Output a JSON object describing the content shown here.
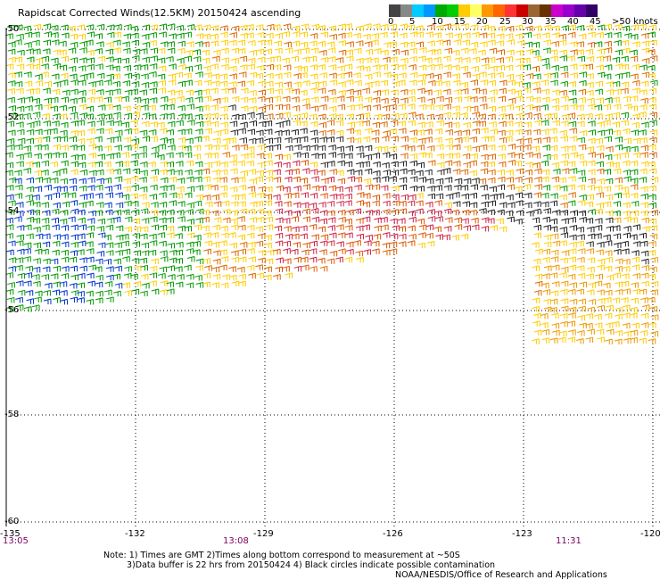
{
  "title": "Rapidscat Corrected Winds(12.5KM) 20150424 ascending",
  "legend": {
    "ticks": [
      "0",
      "5",
      "10",
      "15",
      "20",
      "25",
      "30",
      "35",
      "40",
      "45",
      ">50 knots"
    ],
    "colors": [
      "#444444",
      "#888888",
      "#00ccff",
      "#0099ff",
      "#00aa00",
      "#00cc00",
      "#ffcc00",
      "#ffff66",
      "#ff9900",
      "#ff6600",
      "#ff3333",
      "#cc0000",
      "#996633",
      "#663300",
      "#cc00cc",
      "#9900cc",
      "#6600aa",
      "#330066"
    ]
  },
  "lat_labels": [
    "-50",
    "-52",
    "-54",
    "-56",
    "-58",
    "-60"
  ],
  "lon_labels": [
    "-135",
    "-132",
    "-129",
    "-126",
    "-123",
    "-120"
  ],
  "time_labels": [
    "13:05",
    "13:08",
    "11:31"
  ],
  "notes": {
    "line1": "Note: 1) Times are GMT 2)Times along bottom correspond to measurement at ~50S",
    "line2": "3)Data buffer is 22 hrs from 20150424 4) Black circles indicate possible contamination",
    "line3": "NOAA/NESDIS/Office of Research and Applications"
  }
}
